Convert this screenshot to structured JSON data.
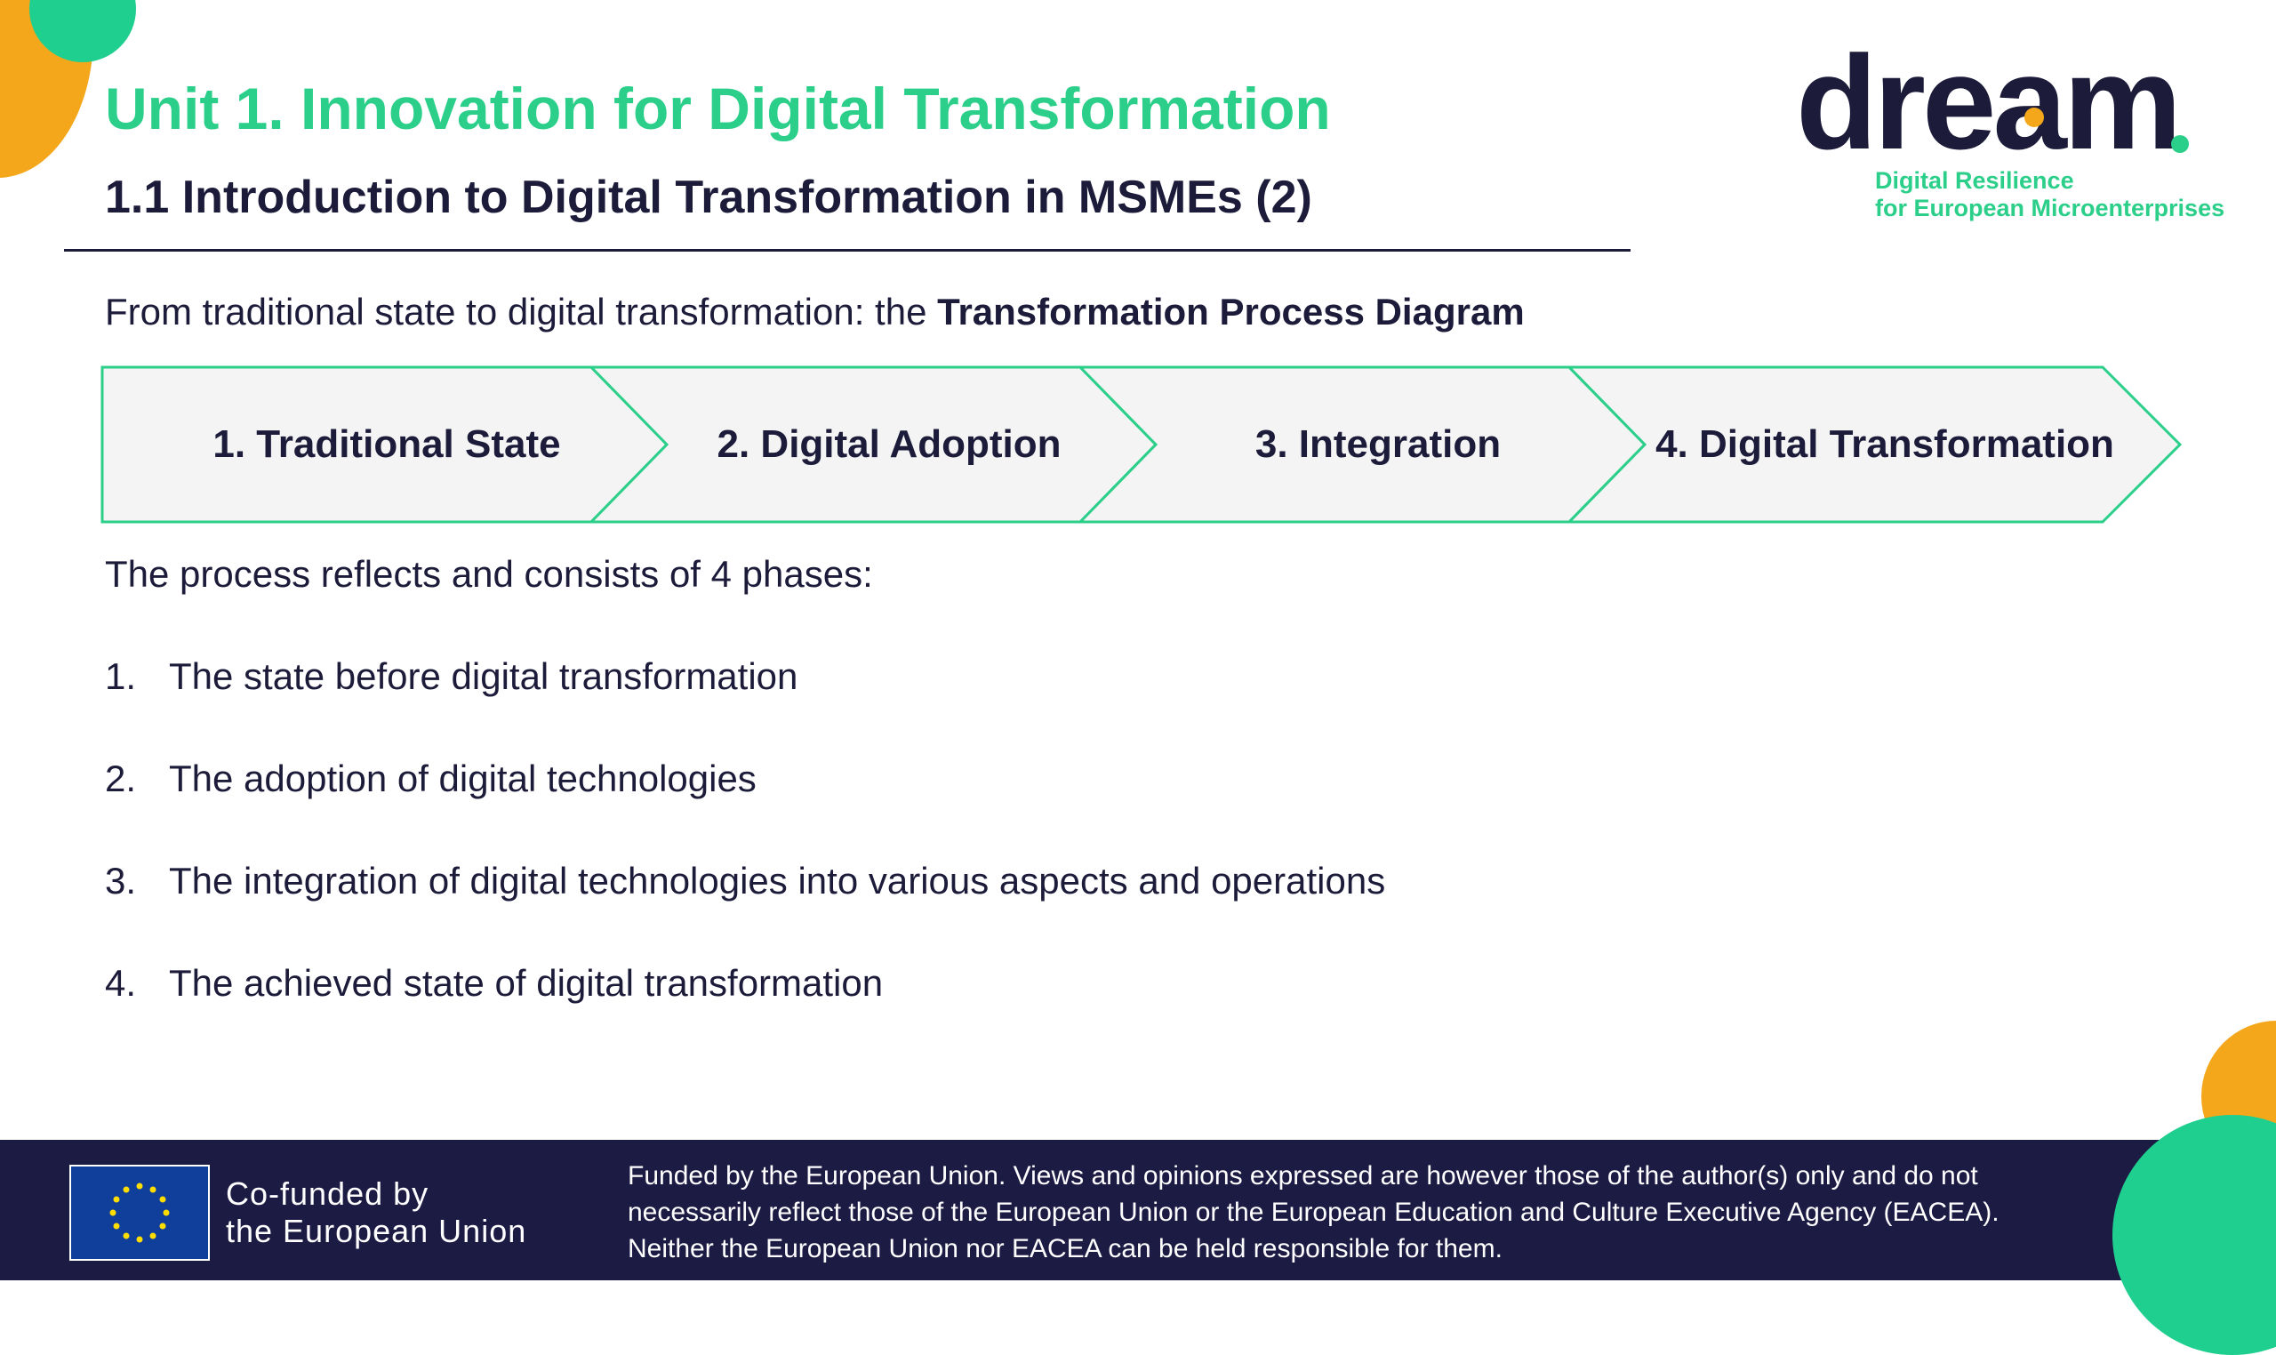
{
  "header": {
    "unit_title": "Unit 1. Innovation for Digital Transformation",
    "section_title": "1.1 Introduction to Digital Transformation in MSMEs (2)"
  },
  "logo": {
    "wordmark": "dream",
    "tagline_line1": "Digital Resilience",
    "tagline_line2": "for European Microenterprises"
  },
  "intro": {
    "prefix": "From traditional state to digital transformation: the ",
    "emphasis": "Transformation Process Diagram"
  },
  "diagram": {
    "steps": [
      {
        "label": "1. Traditional State"
      },
      {
        "label": "2. Digital Adoption"
      },
      {
        "label": "3. Integration"
      },
      {
        "label": "4. Digital Transformation"
      }
    ]
  },
  "process": {
    "intro": "The process reflects and consists of 4 phases:",
    "items": [
      {
        "num": "1.",
        "text": "The state before digital transformation"
      },
      {
        "num": "2.",
        "text": "The adoption of digital technologies"
      },
      {
        "num": "3.",
        "text": "The integration of digital technologies into various aspects and operations"
      },
      {
        "num": "4.",
        "text": "The achieved state of digital transformation"
      }
    ]
  },
  "footer": {
    "cofunded_line1": "Co-funded by",
    "cofunded_line2": "the European Union",
    "disclaimer_line1": "Funded by the European Union. Views and opinions expressed are however those of the author(s) only and do not",
    "disclaimer_line2": "necessarily reflect those of the European Union or the European Education and Culture Executive Agency (EACEA).",
    "disclaimer_line3": "Neither the European Union nor EACEA can be held responsible for them."
  },
  "colors": {
    "accent_green": "#2bcf8a",
    "accent_orange": "#f5a71b",
    "navy": "#1c1b3a",
    "footer_bg": "#1c1b44"
  }
}
